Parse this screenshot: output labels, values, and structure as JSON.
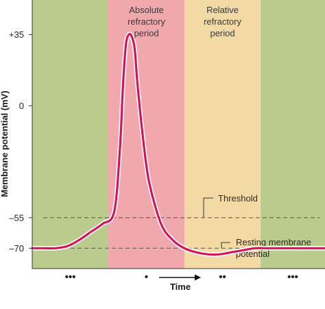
{
  "chart_data": {
    "type": "line",
    "title": "",
    "xlabel": "Time",
    "ylabel": "Membrane potential (mV)",
    "ylim": [
      -80,
      52
    ],
    "yticks": [
      {
        "value": 35,
        "label": "+35"
      },
      {
        "value": 0,
        "label": "0"
      },
      {
        "value": -55,
        "label": "–55"
      },
      {
        "value": -70,
        "label": "–70"
      }
    ],
    "x": [
      0,
      4,
      8,
      12,
      16,
      20,
      24,
      28,
      30,
      31,
      32,
      33,
      34,
      35,
      36,
      38,
      40,
      44,
      48,
      52,
      56,
      60,
      64,
      68,
      72,
      76,
      80,
      84,
      88,
      92,
      96,
      100
    ],
    "series": [
      {
        "values": [
          -70,
          -70,
          -70,
          -69,
          -66,
          -62,
          -58,
          -52,
          -20,
          10,
          30,
          35,
          34,
          28,
          10,
          -18,
          -38,
          -58,
          -66,
          -70,
          -72,
          -73,
          -73,
          -72,
          -71,
          -70,
          -70,
          -70,
          -70,
          -70,
          -70,
          -70
        ],
        "color": "#d4145a"
      }
    ],
    "regions": [
      {
        "label": "",
        "start": 0,
        "end": 26,
        "color": "#b9cc8e",
        "dots": "•••"
      },
      {
        "label": "Absolute refractory period",
        "lines": [
          "Absolute",
          "refractory",
          "period"
        ],
        "start": 26,
        "end": 52,
        "color": "#f1a8ad",
        "dots": "•"
      },
      {
        "label": "Relative refractory period",
        "lines": [
          "Relative",
          "refractory",
          "period"
        ],
        "start": 52,
        "end": 78,
        "color": "#f3d9a4",
        "dots": "••"
      },
      {
        "label": "",
        "start": 78,
        "end": 100,
        "color": "#b9cc8e",
        "dots": "•••"
      }
    ],
    "reference_lines": [
      {
        "value": -55,
        "label": "Threshold",
        "style": "dashed"
      },
      {
        "value": -70,
        "label": "Resting membrane potential",
        "lines": [
          "Resting membrane",
          "potential"
        ],
        "style": "dashed"
      }
    ],
    "grid": false,
    "legend": "none"
  }
}
